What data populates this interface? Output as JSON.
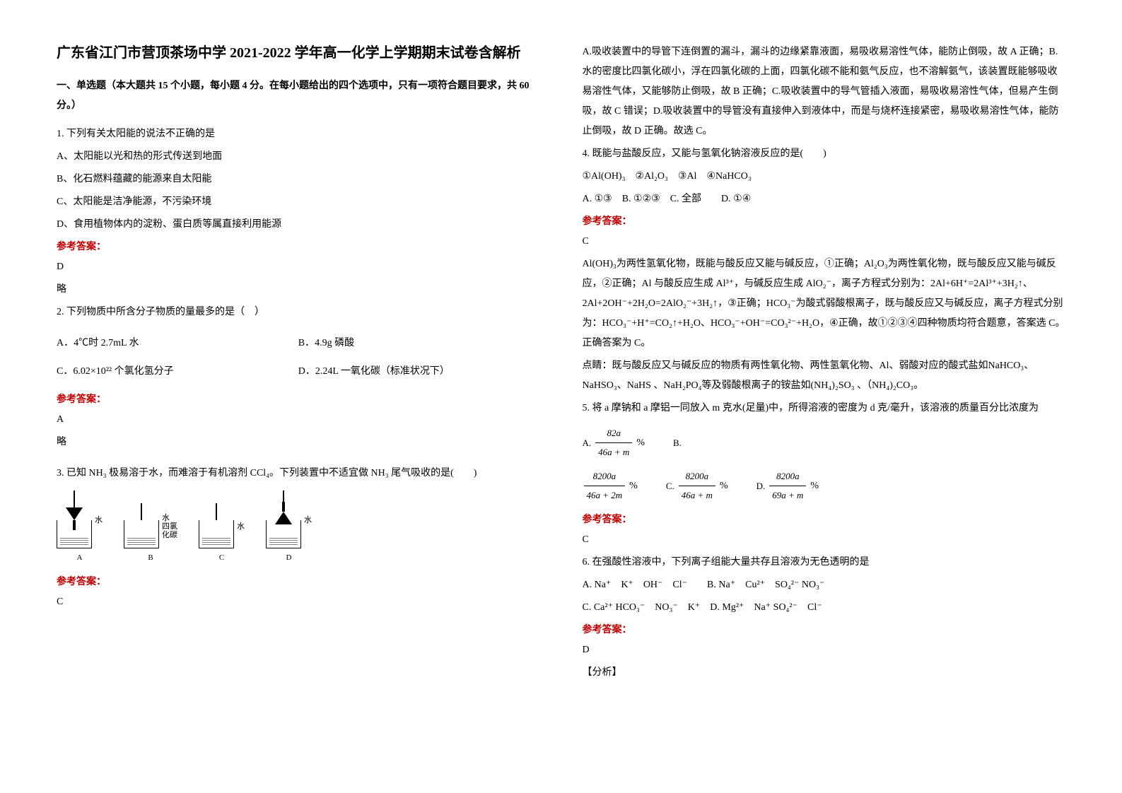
{
  "title": "广东省江门市营顶茶场中学 2021-2022 学年高一化学上学期期末试卷含解析",
  "section1": "一、单选题（本大题共 15 个小题，每小题 4 分。在每小题给出的四个选项中，只有一项符合题目要求，共 60 分。）",
  "q1": {
    "stem": "1. 下列有关太阳能的说法不正确的是",
    "a": "A、太阳能以光和热的形式传送到地面",
    "b": "B、化石燃料蕴藏的能源来自太阳能",
    "c": "C、太阳能是洁净能源，不污染环境",
    "d": "D、食用植物体内的淀粉、蛋白质等属直接利用能源",
    "ans": "D",
    "note": "略"
  },
  "q2": {
    "stem": "2. 下列物质中所含分子物质的量最多的是（　）",
    "a": "A．4℃时 2.7mL 水",
    "b": "B．4.9g 磷酸",
    "c": "C．6.02×10²² 个氯化氢分子",
    "d": "D．2.24L 一氧化碳（标准状况下）",
    "ans": "A",
    "note": "略"
  },
  "q3": {
    "stem": "3. 已知 NH₃ 极易溶于水，而难溶于有机溶剂 CCl₄。下列装置中不适宜做 NH₃ 尾气吸收的是(　　)",
    "labels": {
      "a": "A",
      "b": "B",
      "c": "C",
      "d": "D"
    },
    "sideA": "水",
    "sideB": "水\n四氯\n化碳",
    "sideC": "水",
    "sideD": "水",
    "ans": "C"
  },
  "col2": {
    "explain3": "A.吸收装置中的导管下连倒置的漏斗，漏斗的边缘紧靠液面，易吸收易溶性气体，能防止倒吸，故 A 正确；B.水的密度比四氯化碳小，浮在四氯化碳的上面，四氯化碳不能和氨气反应，也不溶解氨气，该装置既能够吸收易溶性气体，又能够防止倒吸，故 B 正确；C.吸收装置中的导气管插入液面，易吸收易溶性气体，但易产生倒吸，故 C 错误；D.吸收装置中的导管没有直接伸入到液体中，而是与烧杯连接紧密，易吸收易溶性气体，能防止倒吸，故 D 正确。故选 C。"
  },
  "q4": {
    "stem": "4. 既能与盐酸反应，又能与氢氧化钠溶液反应的是(　　)",
    "list": "①Al(OH)₃　②Al₂O₃　③Al　④NaHCO₃",
    "opts": "A. ①③　B. ①②③　C. 全部　　D. ①④",
    "ans": "C",
    "explain": "Al(OH)₃为两性氢氧化物，既能与酸反应又能与碱反应，①正确；Al₂O₃为两性氧化物，既与酸反应又能与碱反应，②正确；Al 与酸反应生成 Al³⁺，与碱反应生成 AlO₂⁻，离子方程式分别为：2Al+6H⁺=2Al³⁺+3H₂↑、2Al+2OH⁻+2H₂O=2AlO₂⁻+3H₂↑，③正确；HCO₃⁻为酸式弱酸根离子，既与酸反应又与碱反应，离子方程式分别为：HCO₃⁻+H⁺=CO₂↑+H₂O、HCO₃⁻+OH⁻=CO₃²⁻+H₂O，④正确，故①②③④四种物质均符合题意，答案选 C。正确答案为 C。",
    "tip": "点睛：既与酸反应又与碱反应的物质有两性氧化物、两性氢氧化物、Al、弱酸对应的酸式盐如NaHCO₃、NaHSO₃、NaHS 、NaH₂PO₄等及弱酸根离子的铵盐如(NH₄)₂SO₃ 、（NH₄)₂CO₃。"
  },
  "q5": {
    "stem": "5. 将 a 摩钠和 a 摩铝一同放入 m 克水(足量)中，所得溶液的密度为 d 克/毫升，该溶液的质量百分比浓度为",
    "fracA": {
      "lbl": "A.",
      "num": "82a",
      "den": "46a + m",
      "suffix": "%"
    },
    "fracB": {
      "lbl": "B.",
      "num": "8200a",
      "den": "46a + 2m",
      "suffix": "%"
    },
    "fracC": {
      "lbl": "C.",
      "num": "8200a",
      "den": "46a + m",
      "suffix": "%"
    },
    "fracD": {
      "lbl": "D.",
      "num": "8200a",
      "den": "69a + m",
      "suffix": "%"
    },
    "ans": "C"
  },
  "q6": {
    "stem": "6. 在强酸性溶液中，下列离子组能大量共存且溶液为无色透明的是",
    "a": "A. Na⁺　K⁺　OH⁻　Cl⁻　　B. Na⁺　Cu²⁺　SO₄²⁻ NO₃⁻",
    "c": "C. Ca²⁺ HCO₃⁻　NO₃⁻　K⁺　D. Mg²⁺　Na⁺ SO₄²⁻　Cl⁻",
    "ans": "D",
    "tail": "【分析】"
  },
  "label_answer": "参考答案："
}
